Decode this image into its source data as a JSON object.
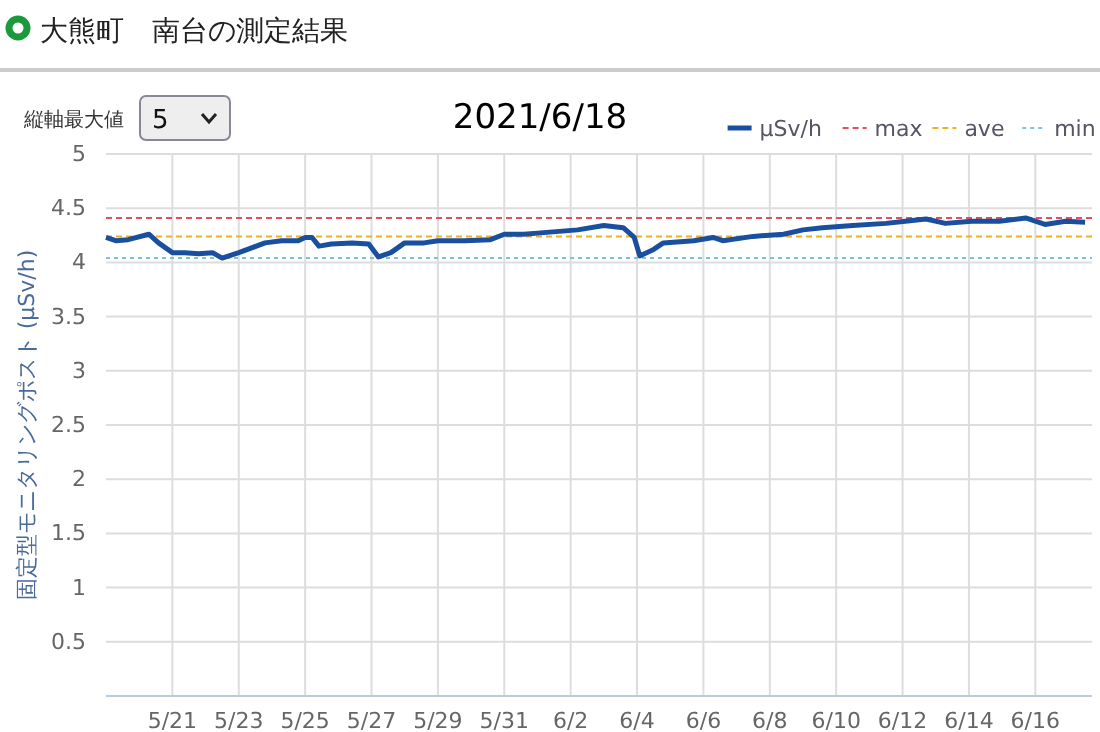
{
  "chart_data": {
    "type": "line",
    "title": "大熊町　南台の測定結果",
    "subtitle": "2021/6/18",
    "ylabel": "固定型モニタリングポスト (μSv/h)",
    "annotations": [
      "縦軸最大値",
      "5"
    ],
    "xlim": [
      "2021-05-19",
      "2021-06-17T17:00"
    ],
    "xticks": [
      {
        "value": "2021-05-21",
        "label": "5/21"
      },
      {
        "value": "2021-05-23",
        "label": "5/23"
      },
      {
        "value": "2021-05-25",
        "label": "5/25"
      },
      {
        "value": "2021-05-27",
        "label": "5/27"
      },
      {
        "value": "2021-05-29",
        "label": "5/29"
      },
      {
        "value": "2021-05-31",
        "label": "5/31"
      },
      {
        "value": "2021-06-02",
        "label": "6/2"
      },
      {
        "value": "2021-06-04",
        "label": "6/4"
      },
      {
        "value": "2021-06-06",
        "label": "6/6"
      },
      {
        "value": "2021-06-08",
        "label": "6/8"
      },
      {
        "value": "2021-06-10",
        "label": "6/10"
      },
      {
        "value": "2021-06-12",
        "label": "6/12"
      },
      {
        "value": "2021-06-14",
        "label": "6/14"
      },
      {
        "value": "2021-06-16",
        "label": "6/16"
      }
    ],
    "ylim": [
      0,
      5
    ],
    "yticks": [
      {
        "value": 0,
        "label": null
      },
      0.5,
      1,
      1.5,
      2,
      2.5,
      3,
      3.5,
      4,
      4.5,
      5
    ],
    "grid": true,
    "legend": "top right",
    "line_style": "solid",
    "marker": "none",
    "ref_lines": [
      {
        "axis": "y",
        "value": 4.41,
        "label": "max",
        "color": "#e05060",
        "line_style": "dashed"
      },
      {
        "axis": "y",
        "value": 4.24,
        "label": "ave",
        "color": "#f0b020",
        "line_style": "dashed"
      },
      {
        "axis": "y",
        "value": 4.04,
        "label": "min",
        "color": "#80c0e0",
        "line_style": "dotted"
      }
    ],
    "series": [
      {
        "name": "μSv/h",
        "color": "#1a4fa0",
        "x": [
          "2021-05-19T00:00",
          "2021-05-19T07:00",
          "2021-05-19T16:00",
          "2021-05-20T07:00",
          "2021-05-20T14:00",
          "2021-05-21T00:00",
          "2021-05-21T09:00",
          "2021-05-21T19:00",
          "2021-05-22T05:00",
          "2021-05-22T12:00",
          "2021-05-23T00:00",
          "2021-05-23T19:00",
          "2021-05-24T07:00",
          "2021-05-24T19:00",
          "2021-05-25T00:00",
          "2021-05-25T05:00",
          "2021-05-25T10:00",
          "2021-05-25T19:00",
          "2021-05-26T10:00",
          "2021-05-26T22:00",
          "2021-05-27T05:00",
          "2021-05-27T14:00",
          "2021-05-28T00:00",
          "2021-05-28T14:00",
          "2021-05-29T00:00",
          "2021-05-29T19:00",
          "2021-05-30T14:00",
          "2021-05-31T00:00",
          "2021-05-31T14:00",
          "2021-06-01T00:00",
          "2021-06-02T05:00",
          "2021-06-03T00:00",
          "2021-06-03T14:00",
          "2021-06-03T22:00",
          "2021-06-04T02:00",
          "2021-06-04T12:00",
          "2021-06-04T19:00",
          "2021-06-05T17:00",
          "2021-06-06T07:00",
          "2021-06-06T14:00",
          "2021-06-07T12:00",
          "2021-06-08T10:00",
          "2021-06-09T00:00",
          "2021-06-09T14:00",
          "2021-06-10T12:00",
          "2021-06-11T12:00",
          "2021-06-12T02:00",
          "2021-06-12T17:00",
          "2021-06-13T07:00",
          "2021-06-14T02:00",
          "2021-06-14T22:00",
          "2021-06-15T17:00",
          "2021-06-16T07:00",
          "2021-06-16T22:00",
          "2021-06-17T12:00"
        ],
        "values": [
          4.23,
          4.2,
          4.21,
          4.26,
          4.18,
          4.09,
          4.09,
          4.08,
          4.09,
          4.04,
          4.09,
          4.18,
          4.2,
          4.2,
          4.23,
          4.23,
          4.15,
          4.17,
          4.18,
          4.17,
          4.05,
          4.09,
          4.18,
          4.18,
          4.2,
          4.2,
          4.21,
          4.26,
          4.26,
          4.27,
          4.3,
          4.34,
          4.32,
          4.23,
          4.06,
          4.12,
          4.18,
          4.2,
          4.23,
          4.2,
          4.24,
          4.26,
          4.3,
          4.32,
          4.34,
          4.36,
          4.38,
          4.4,
          4.36,
          4.38,
          4.38,
          4.41,
          4.35,
          4.38,
          4.37
        ]
      }
    ]
  }
}
